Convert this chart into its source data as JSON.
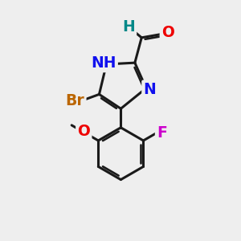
{
  "background_color": "#eeeeee",
  "bond_color": "#1a1a1a",
  "bond_width": 2.2,
  "atom_colors": {
    "N": "#1010ee",
    "O": "#ee0000",
    "Br": "#bb6600",
    "F": "#cc00cc",
    "H": "#008888"
  },
  "font_size": 13.5,
  "canvas_size": 10.0
}
